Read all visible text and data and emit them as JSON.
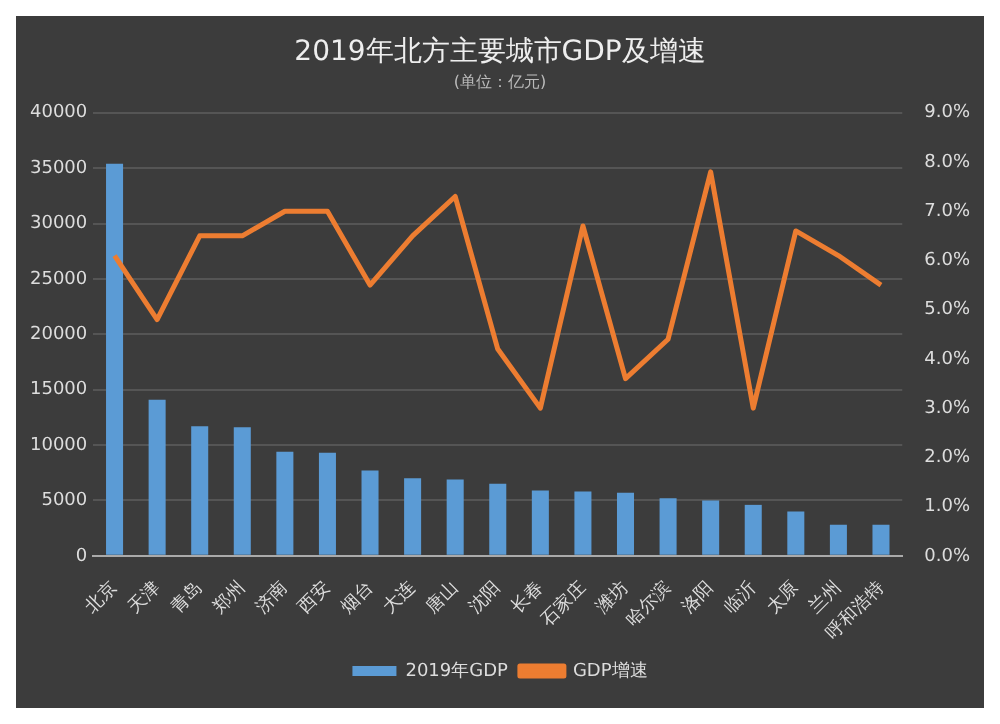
{
  "chart_data": {
    "type": "bar",
    "title": "2019年北方主要城市GDP及增速",
    "subtitle": "(单位：亿元)",
    "categories": [
      "北京",
      "天津",
      "青岛",
      "郑州",
      "济南",
      "西安",
      "烟台",
      "大连",
      "唐山",
      "沈阳",
      "长春",
      "石家庄",
      "潍坊",
      "哈尔滨",
      "洛阳",
      "临沂",
      "太原",
      "兰州",
      "呼和浩特"
    ],
    "series": [
      {
        "name": "2019年GDP",
        "color": "#5b9bd5",
        "values": [
          35400,
          14100,
          11700,
          11600,
          9400,
          9300,
          7700,
          7000,
          6900,
          6500,
          5900,
          5800,
          5700,
          5200,
          5000,
          4600,
          4000,
          2800,
          2800
        ]
      },
      {
        "name": "GDP增速",
        "type": "line",
        "axis": "y2",
        "color": "#ed7d31",
        "values": [
          6.1,
          4.8,
          6.5,
          6.5,
          7.0,
          7.0,
          5.5,
          6.5,
          7.3,
          4.2,
          3.0,
          6.7,
          3.6,
          4.4,
          7.8,
          3.0,
          6.6,
          6.1,
          5.5
        ]
      }
    ],
    "ylim": [
      0,
      40000
    ],
    "yticks": [
      0,
      5000,
      10000,
      15000,
      20000,
      25000,
      30000,
      35000,
      40000
    ],
    "y2lim": [
      0,
      9
    ],
    "y2ticks": [
      {
        "value": 0,
        "label": "0.0%"
      },
      {
        "value": 1,
        "label": "1.0%"
      },
      {
        "value": 2,
        "label": "2.0%"
      },
      {
        "value": 3,
        "label": "3.0%"
      },
      {
        "value": 4,
        "label": "4.0%"
      },
      {
        "value": 5,
        "label": "5.0%"
      },
      {
        "value": 6,
        "label": "6.0%"
      },
      {
        "value": 7,
        "label": "7.0%"
      },
      {
        "value": 8,
        "label": "8.0%"
      },
      {
        "value": 9,
        "label": "9.0%"
      }
    ],
    "grid": "y",
    "legend": "bottom",
    "marker": "none"
  }
}
